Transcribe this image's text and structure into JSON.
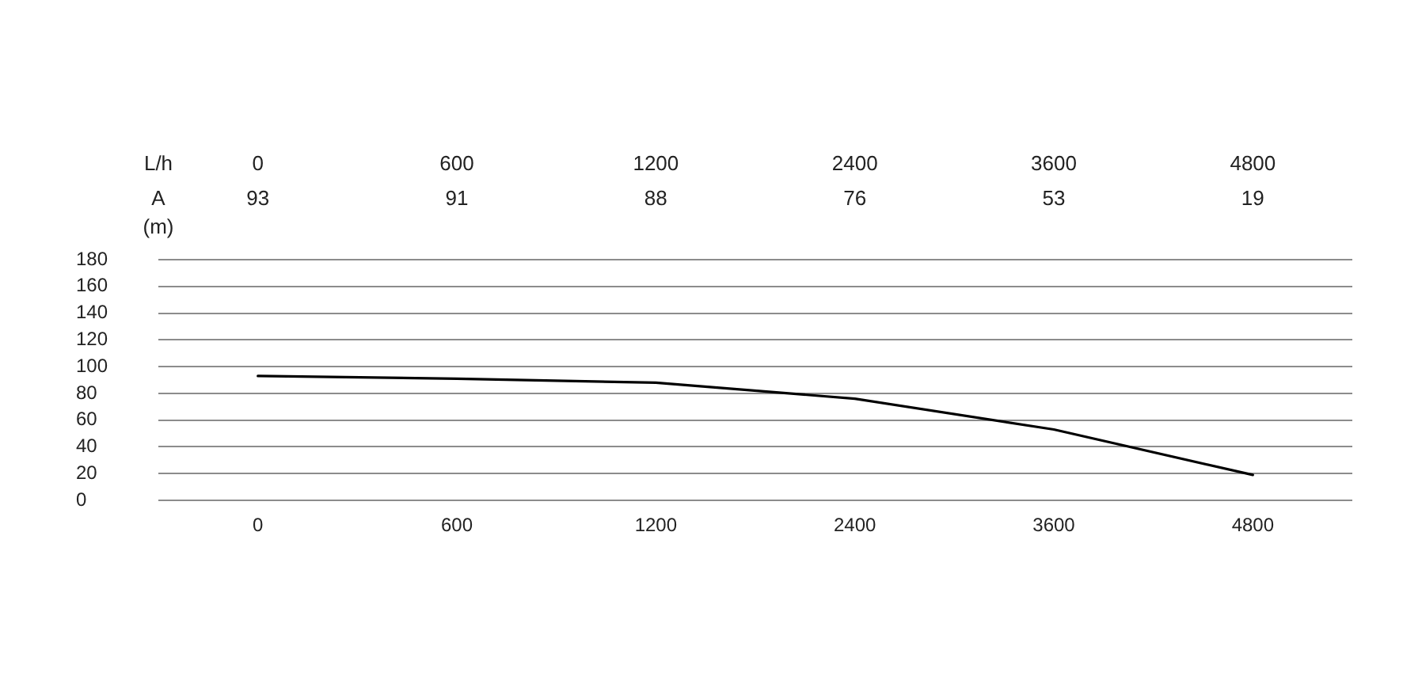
{
  "chart_data": {
    "type": "line",
    "xlabel": "L/h",
    "ylabel": "A (m)",
    "categories": [
      "0",
      "600",
      "1200",
      "2400",
      "3600",
      "4800"
    ],
    "series": [
      {
        "color": "#000000",
        "values": [
          93,
          91,
          88,
          76,
          53,
          19
        ]
      }
    ],
    "ylim": [
      0,
      180
    ],
    "yticks": [
      0,
      20,
      40,
      60,
      80,
      100,
      120,
      140,
      160,
      180
    ],
    "grid": "y",
    "legend": false,
    "marker": "none",
    "line_style": "solid",
    "data_labels": true
  }
}
